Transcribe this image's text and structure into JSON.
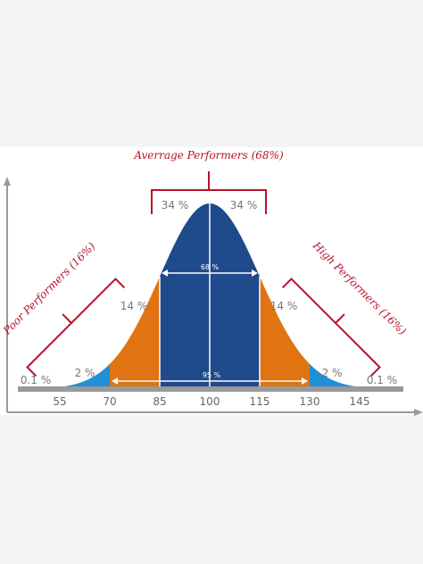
{
  "title": "Averrage Performers (68%)",
  "left_label": "Poor Performers (16%)",
  "right_label": "High Performers (16%)",
  "segment_labels": [
    "0.1 %",
    "2 %",
    "14 %",
    "34 %",
    "34 %",
    "14 %",
    "2 %",
    "0.1 %"
  ],
  "range_labels": {
    "inner": "68 %",
    "outer": "95 %"
  },
  "axis_labels": [
    "55",
    "70",
    "85",
    "100",
    "115",
    "130",
    "145"
  ]
}
